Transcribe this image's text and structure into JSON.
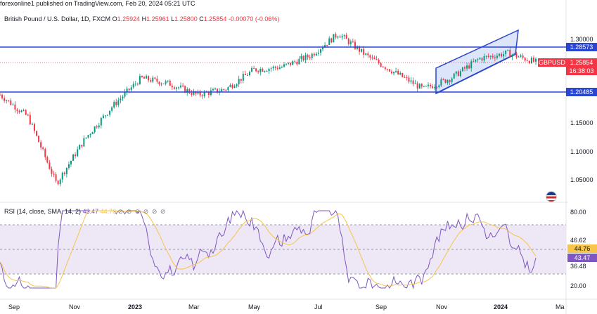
{
  "header": {
    "text": "forexonline1 published on TradingView.com, Feb 20, 2024 05:21 UTC"
  },
  "legend": {
    "symbol": "British Pound / U.S. Dollar, 1D, FXCM",
    "o_label": "O",
    "o": "1.25924",
    "h_label": "H",
    "h": "1.25961",
    "l_label": "L",
    "l": "1.25800",
    "c_label": "C",
    "c": "1.25854",
    "change": "-0.00070 (-0.06%)"
  },
  "rsi_legend": {
    "title": "RSI (14, close, SMA, 14, 2)",
    "rsi_value": "43.47",
    "sma_value": "44.76",
    "icons": "⊘ ⊘ ⊘ ⊘ ⊘ ⊘"
  },
  "price_axis": {
    "labels": [
      "1.30000",
      "1.15000",
      "1.10000",
      "1.05000"
    ],
    "tag_resistance": "1.28573",
    "tag_support": "1.20485",
    "tag_price": "1.25854",
    "tag_symbol": "GBPUSD",
    "tag_countdown": "16:38:03",
    "colors": {
      "line": "#2a46d1",
      "price_tag": "#f23645",
      "symbol_tag": "#f23645"
    }
  },
  "rsi_axis": {
    "labels": [
      "80.00",
      "46.62",
      "44.76",
      "43.47",
      "36.48",
      "20.00"
    ],
    "colors": {
      "rsi": "#7e57c2",
      "sma": "#f7c54a",
      "band": "#ede7f6"
    }
  },
  "time_axis": {
    "labels": [
      {
        "text": "Sep",
        "bold": false
      },
      {
        "text": "Nov",
        "bold": false
      },
      {
        "text": "2023",
        "bold": true
      },
      {
        "text": "Mar",
        "bold": false
      },
      {
        "text": "May",
        "bold": false
      },
      {
        "text": "Jul",
        "bold": false
      },
      {
        "text": "Sep",
        "bold": false
      },
      {
        "text": "Nov",
        "bold": false
      },
      {
        "text": "2024",
        "bold": true
      },
      {
        "text": "Ma",
        "bold": false
      }
    ]
  },
  "chart_data": {
    "type": "line",
    "instrument": "GBPUSD",
    "price_path_x": [
      "Aug 2022",
      "Sep 2022",
      "late Sep 2022",
      "Oct 2022",
      "Nov 2022",
      "Dec 2022",
      "Jan 2023",
      "Feb 2023",
      "Mar 2023",
      "Apr 2023",
      "May 2023",
      "Jun 2023",
      "mid Jul 2023",
      "Aug 2023",
      "Sep 2023",
      "early Oct 2023",
      "Nov 2023",
      "Dec 2023",
      "Jan 2024",
      "Feb 2024"
    ],
    "price_path_y": [
      1.2,
      1.16,
      1.04,
      1.12,
      1.18,
      1.23,
      1.22,
      1.2,
      1.21,
      1.245,
      1.25,
      1.27,
      1.31,
      1.27,
      1.24,
      1.21,
      1.23,
      1.265,
      1.275,
      1.2585
    ],
    "horizontal_levels": [
      1.28573,
      1.20485
    ],
    "rsi_levels": [
      80.0,
      46.62,
      36.48,
      20.0
    ]
  }
}
